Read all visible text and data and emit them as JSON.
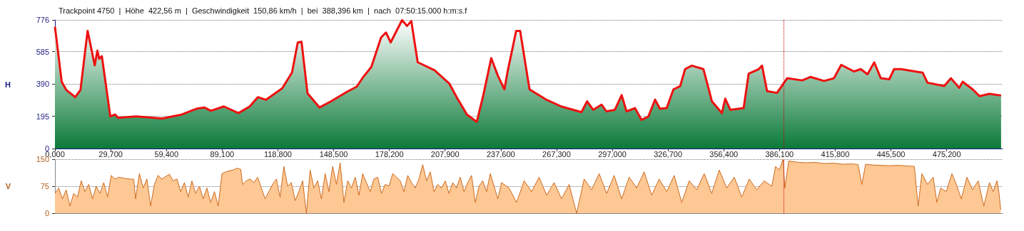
{
  "chart_data": [
    {
      "type": "area",
      "title": "Trackpoint 4750  |  Höhe  422,56 m  |  Geschwindigkeit  150,86 km/h  |  bei  388,396 km  |  nach  07:50:15.000 h:m:s.f",
      "ylabel": "H",
      "xlim": [
        0,
        505
      ],
      "ylim": [
        0,
        776
      ],
      "xticks": [
        {
          "value": 0,
          "label": "0,000"
        },
        {
          "value": 29.7,
          "label": "29,700"
        },
        {
          "value": 59.4,
          "label": "59,400"
        },
        {
          "value": 89.1,
          "label": "89,100"
        },
        {
          "value": 118.8,
          "label": "118,800"
        },
        {
          "value": 148.5,
          "label": "148,500"
        },
        {
          "value": 178.2,
          "label": "178,200"
        },
        {
          "value": 207.9,
          "label": "207,900"
        },
        {
          "value": 237.6,
          "label": "237,600"
        },
        {
          "value": 267.3,
          "label": "267,300"
        },
        {
          "value": 297,
          "label": "297,000"
        },
        {
          "value": 326.7,
          "label": "326,700"
        },
        {
          "value": 356.4,
          "label": "356,400"
        },
        {
          "value": 386.1,
          "label": "386,100"
        },
        {
          "value": 415.8,
          "label": "415,800"
        },
        {
          "value": 445.5,
          "label": "445,500"
        },
        {
          "value": 475.2,
          "label": "475,200"
        }
      ],
      "yticks": [
        0,
        195,
        390,
        585,
        776
      ],
      "grid": "y",
      "marker": "none",
      "line_style": "solid",
      "ref_lines": [
        {
          "axis": "x",
          "value": 388.396,
          "label": null,
          "color": "#cc0000",
          "line_style": "dotted"
        }
      ],
      "series": [
        {
          "color": "#ee1111",
          "x": [
            0,
            3.6,
            6.1,
            10.8,
            13.6,
            17.4,
            21.2,
            22.6,
            23.6,
            25,
            29.5,
            32.1,
            33.8,
            43.3,
            57.1,
            67.5,
            75.3,
            79.6,
            83.1,
            90,
            97.8,
            103.8,
            108.1,
            112.4,
            121.1,
            126.3,
            129.4,
            131.4,
            134.6,
            141,
            147,
            155.7,
            160.8,
            164.3,
            168.6,
            173.8,
            176.4,
            178.9,
            181.6,
            185,
            187.6,
            189.9,
            193.3,
            202.3,
            210.1,
            214.4,
            219.6,
            224.8,
            228.3,
            232.5,
            236,
            239.5,
            241.3,
            245.8,
            247.9,
            252.9,
            261.8,
            269.8,
            280.6,
            283.6,
            286.8,
            291.3,
            293.9,
            298.4,
            302,
            304.6,
            309.1,
            312.6,
            316.2,
            319.8,
            322.4,
            326,
            329.6,
            333.2,
            335.8,
            339.4,
            345.6,
            350.1,
            355.4,
            357.2,
            359.9,
            367,
            369.7,
            375,
            376.8,
            379.5,
            384.8,
            390.2,
            398.2,
            402.7,
            409.8,
            415.1,
            419,
            425.8,
            429.4,
            433,
            436.6,
            440.1,
            444.6,
            447.2,
            450.8,
            462.4,
            465,
            473.9,
            477.5,
            481.9,
            483.7,
            489.1,
            492.7,
            498,
            504.2
          ],
          "values": [
            735,
            403,
            353,
            310,
            353,
            710,
            502,
            591,
            541,
            557,
            194,
            205,
            185,
            194,
            181,
            205,
            240,
            248,
            228,
            254,
            214,
            254,
            310,
            294,
            363,
            458,
            640,
            644,
            333,
            248,
            284,
            343,
            373,
            432,
            492,
            670,
            700,
            640,
            700,
            775,
            739,
            769,
            521,
            472,
            393,
            303,
            205,
            161,
            323,
            545,
            440,
            357,
            469,
            710,
            710,
            357,
            295,
            254,
            220,
            285,
            234,
            265,
            224,
            234,
            322,
            224,
            244,
            173,
            193,
            295,
            240,
            244,
            357,
            377,
            479,
            500,
            479,
            285,
            214,
            301,
            234,
            244,
            452,
            479,
            500,
            346,
            336,
            424,
            411,
            432,
            408,
            424,
            505,
            465,
            479,
            448,
            520,
            424,
            418,
            479,
            479,
            458,
            397,
            377,
            424,
            366,
            403,
            357,
            316,
            330,
            320
          ]
        }
      ]
    },
    {
      "type": "area",
      "ylabel": "V",
      "xlim": [
        0,
        505
      ],
      "ylim": [
        0,
        150
      ],
      "yticks": [
        0,
        75,
        150
      ],
      "grid": "y",
      "marker": "none",
      "line_style": "solid",
      "tick_labels": "y",
      "ref_lines": [
        {
          "axis": "x",
          "value": 388.396,
          "label": null,
          "color": "#cc0000",
          "line_style": "dotted"
        }
      ],
      "series": [
        {
          "color": "#cc6a1e",
          "x": [
            0,
            2,
            4,
            6,
            8,
            10,
            12,
            14,
            16,
            18,
            20,
            22,
            24,
            26,
            28,
            30,
            32,
            34,
            36,
            38,
            40,
            42,
            43,
            45,
            47,
            49,
            51,
            53,
            55,
            57,
            59,
            61,
            63,
            65,
            67,
            69,
            71,
            73,
            75,
            77,
            79,
            81,
            83,
            85,
            87,
            89,
            91,
            93,
            95,
            97,
            99,
            100,
            102,
            104,
            106,
            108,
            110,
            112,
            114,
            116,
            118,
            120,
            122,
            124,
            126,
            128,
            130,
            132,
            134,
            136,
            138,
            140,
            142,
            144,
            146,
            148,
            150,
            152,
            154,
            156,
            158,
            160,
            162,
            164,
            166,
            168,
            170,
            172,
            174,
            176,
            178,
            180,
            182,
            184,
            186,
            188,
            190,
            192,
            194,
            196,
            198,
            200,
            202,
            204,
            206,
            208,
            210,
            212,
            214,
            216,
            218,
            220,
            222,
            224,
            226,
            228,
            230,
            232,
            234,
            236,
            238,
            242,
            246,
            250,
            254,
            258,
            262,
            266,
            270,
            274,
            278,
            282,
            286,
            290,
            294,
            298,
            302,
            306,
            310,
            314,
            318,
            322,
            326,
            330,
            334,
            338,
            342,
            346,
            350,
            354,
            358,
            362,
            366,
            370,
            374,
            378,
            382,
            384,
            386,
            388,
            389,
            391,
            395,
            400,
            405,
            410,
            415,
            420,
            425,
            428,
            430,
            432,
            436,
            440,
            445,
            450,
            455,
            458,
            460,
            462,
            465,
            468,
            470,
            472,
            475,
            478,
            480,
            483,
            486,
            489,
            492,
            495,
            498,
            500,
            502,
            503,
            504
          ],
          "values": [
            55,
            70,
            40,
            65,
            20,
            55,
            45,
            90,
            60,
            80,
            40,
            75,
            55,
            85,
            45,
            105,
            95,
            100,
            98,
            96,
            95,
            94,
            40,
            110,
            70,
            95,
            20,
            80,
            105,
            95,
            102,
            108,
            90,
            95,
            60,
            85,
            45,
            90,
            55,
            75,
            40,
            70,
            30,
            60,
            20,
            110,
            115,
            118,
            120,
            125,
            122,
            80,
            90,
            95,
            85,
            100,
            70,
            40,
            60,
            80,
            95,
            45,
            130,
            75,
            85,
            35,
            60,
            90,
            0,
            120,
            70,
            90,
            40,
            110,
            60,
            130,
            80,
            140,
            30,
            90,
            70,
            100,
            50,
            110,
            85,
            60,
            95,
            100,
            55,
            80,
            75,
            110,
            100,
            90,
            60,
            105,
            85,
            70,
            95,
            135,
            90,
            115,
            60,
            80,
            70,
            90,
            55,
            85,
            70,
            100,
            60,
            85,
            105,
            30,
            75,
            90,
            60,
            110,
            75,
            40,
            85,
            70,
            30,
            90,
            60,
            100,
            50,
            85,
            40,
            80,
            0,
            95,
            65,
            110,
            55,
            105,
            40,
            100,
            70,
            115,
            50,
            95,
            60,
            105,
            30,
            90,
            65,
            110,
            55,
            120,
            70,
            100,
            45,
            95,
            65,
            90,
            75,
            130,
            120,
            150,
            70,
            145,
            142,
            140,
            141,
            138,
            139,
            136,
            137,
            135,
            80,
            136,
            134,
            133,
            132,
            133,
            131,
            130,
            20,
            110,
            80,
            100,
            30,
            70,
            60,
            110,
            85,
            40,
            100,
            65,
            90,
            20,
            85,
            60,
            90,
            60,
            10
          ]
        }
      ]
    }
  ]
}
